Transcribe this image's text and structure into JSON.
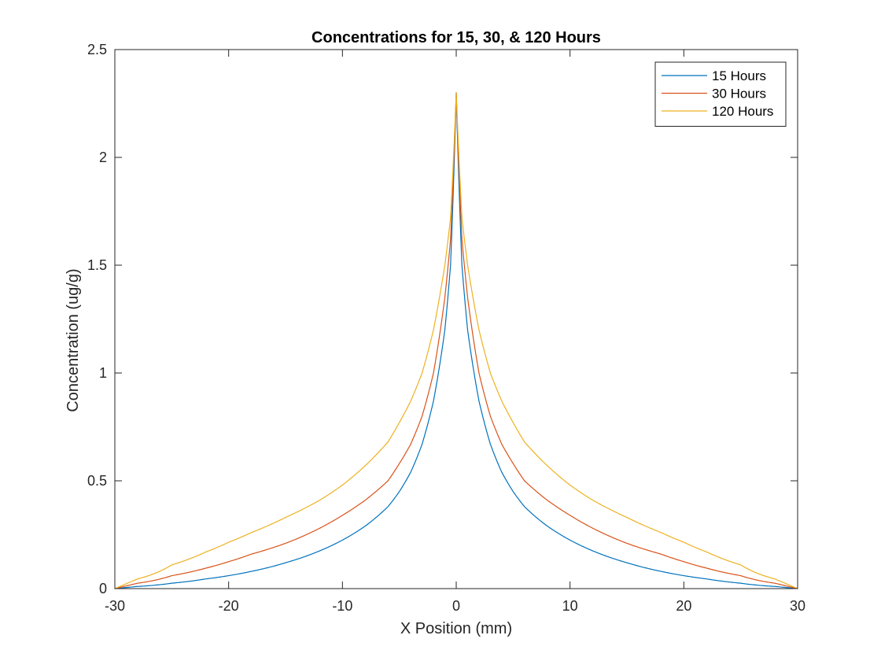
{
  "chart_data": {
    "type": "line",
    "title": "Concentrations for 15, 30, & 120 Hours",
    "xlabel": "X Position (mm)",
    "ylabel": "Concentration (ug/g)",
    "xlim": [
      -30,
      30
    ],
    "ylim": [
      0,
      2.5
    ],
    "xticks": [
      -30,
      -20,
      -10,
      0,
      10,
      20,
      30
    ],
    "xtick_labels": [
      "-30",
      "-20",
      "-10",
      "0",
      "10",
      "20",
      "30"
    ],
    "yticks": [
      0,
      0.5,
      1,
      1.5,
      2,
      2.5
    ],
    "ytick_labels": [
      "0",
      "0.5",
      "1",
      "1.5",
      "2",
      "2.5"
    ],
    "grid": false,
    "legend_position": "top-right",
    "x": [
      0,
      0.5,
      1,
      2,
      3,
      4,
      5,
      6,
      8,
      10,
      12,
      15,
      18,
      20,
      22,
      25,
      28,
      30
    ],
    "symmetric_about_zero": true,
    "series": [
      {
        "name": "15 Hours",
        "color": "#0072BD",
        "values": [
          2.3,
          1.5,
          1.2,
          0.87,
          0.67,
          0.54,
          0.45,
          0.38,
          0.29,
          0.225,
          0.175,
          0.12,
          0.08,
          0.06,
          0.045,
          0.025,
          0.01,
          0.0
        ]
      },
      {
        "name": "30 Hours",
        "color": "#D95319",
        "values": [
          2.3,
          1.62,
          1.35,
          1.0,
          0.8,
          0.67,
          0.58,
          0.5,
          0.41,
          0.34,
          0.28,
          0.21,
          0.16,
          0.125,
          0.095,
          0.06,
          0.025,
          0.0
        ]
      },
      {
        "name": "120 Hours",
        "color": "#EDB120",
        "values": [
          2.3,
          1.72,
          1.5,
          1.2,
          1.0,
          0.87,
          0.77,
          0.68,
          0.57,
          0.48,
          0.41,
          0.33,
          0.26,
          0.215,
          0.17,
          0.11,
          0.045,
          0.0
        ]
      }
    ]
  }
}
